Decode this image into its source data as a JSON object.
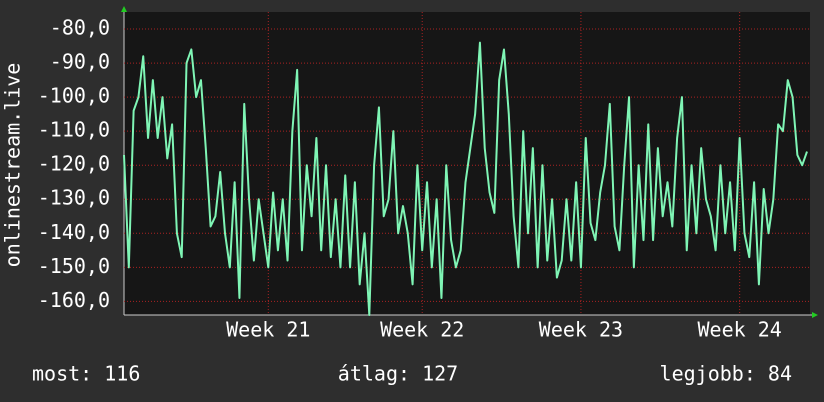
{
  "chart_data": {
    "type": "line",
    "y_label": "onlinestream.live",
    "categories": [
      null,
      null,
      null,
      null,
      null,
      null,
      null,
      null,
      null,
      null,
      null,
      null,
      null,
      null,
      null,
      null,
      null,
      null,
      null,
      null,
      null,
      null,
      null,
      null,
      null,
      null,
      null,
      null,
      null,
      null,
      "Week 21",
      null,
      null,
      null,
      null,
      null,
      null,
      null,
      null,
      null,
      null,
      null,
      null,
      null,
      null,
      null,
      null,
      null,
      null,
      null,
      null,
      null,
      null,
      null,
      null,
      null,
      null,
      null,
      null,
      null,
      null,
      null,
      "Week 22",
      null,
      null,
      null,
      null,
      null,
      null,
      null,
      null,
      null,
      null,
      null,
      null,
      null,
      null,
      null,
      null,
      null,
      null,
      null,
      null,
      null,
      null,
      null,
      null,
      null,
      null,
      null,
      null,
      null,
      null,
      null,
      null,
      "Week 23",
      null,
      null,
      null,
      null,
      null,
      null,
      null,
      null,
      null,
      null,
      null,
      null,
      null,
      null,
      null,
      null,
      null,
      null,
      null,
      null,
      null,
      null,
      null,
      null,
      null,
      null,
      null,
      null,
      null,
      null,
      null,
      null,
      "Week 24",
      null,
      null,
      null,
      null,
      null,
      null,
      null,
      null,
      null,
      null,
      null,
      null,
      null,
      null
    ],
    "values": [
      -117,
      -150,
      -104,
      -100,
      -88,
      -112,
      -95,
      -112,
      -100,
      -118,
      -108,
      -140,
      -147,
      -90,
      -86,
      -100,
      -95,
      -115,
      -138,
      -135,
      -122,
      -140,
      -150,
      -125,
      -159,
      -102,
      -130,
      -148,
      -130,
      -140,
      -150,
      -128,
      -145,
      -130,
      -148,
      -110,
      -92,
      -145,
      -120,
      -135,
      -112,
      -145,
      -120,
      -147,
      -130,
      -150,
      -123,
      -150,
      -125,
      -155,
      -140,
      -164,
      -120,
      -103,
      -135,
      -130,
      -110,
      -140,
      -132,
      -140,
      -155,
      -120,
      -145,
      -125,
      -150,
      -130,
      -159,
      -120,
      -142,
      -150,
      -145,
      -125,
      -115,
      -105,
      -84,
      -115,
      -128,
      -134,
      -95,
      -86,
      -105,
      -135,
      -150,
      -110,
      -140,
      -115,
      -150,
      -120,
      -148,
      -130,
      -153,
      -148,
      -130,
      -148,
      -125,
      -150,
      -112,
      -137,
      -142,
      -128,
      -120,
      -102,
      -138,
      -145,
      -120,
      -100,
      -150,
      -120,
      -142,
      -108,
      -142,
      -115,
      -135,
      -125,
      -138,
      -112,
      -100,
      -145,
      -120,
      -140,
      -115,
      -130,
      -135,
      -145,
      -120,
      -140,
      -125,
      -145,
      -112,
      -140,
      -147,
      -125,
      -155,
      -127,
      -140,
      -130,
      -108,
      -110,
      -95,
      -100,
      -117,
      -120,
      -116
    ],
    "color": "#7ff5b5",
    "ylim": [
      -164,
      -75
    ],
    "yticks": [
      {
        "value": -80,
        "label": "-80,0"
      },
      {
        "value": -90,
        "label": "-90,0"
      },
      {
        "value": -100,
        "label": "-100,0"
      },
      {
        "value": -110,
        "label": "-110,0"
      },
      {
        "value": -120,
        "label": "-120,0"
      },
      {
        "value": -130,
        "label": "-130,0"
      },
      {
        "value": -140,
        "label": "-140,0"
      },
      {
        "value": -150,
        "label": "-150,0"
      },
      {
        "value": -160,
        "label": "-160,0"
      }
    ],
    "grid": true,
    "footer": {
      "current": "most: 116",
      "average": "átlag: 127",
      "best": "legjobb: 84"
    }
  }
}
